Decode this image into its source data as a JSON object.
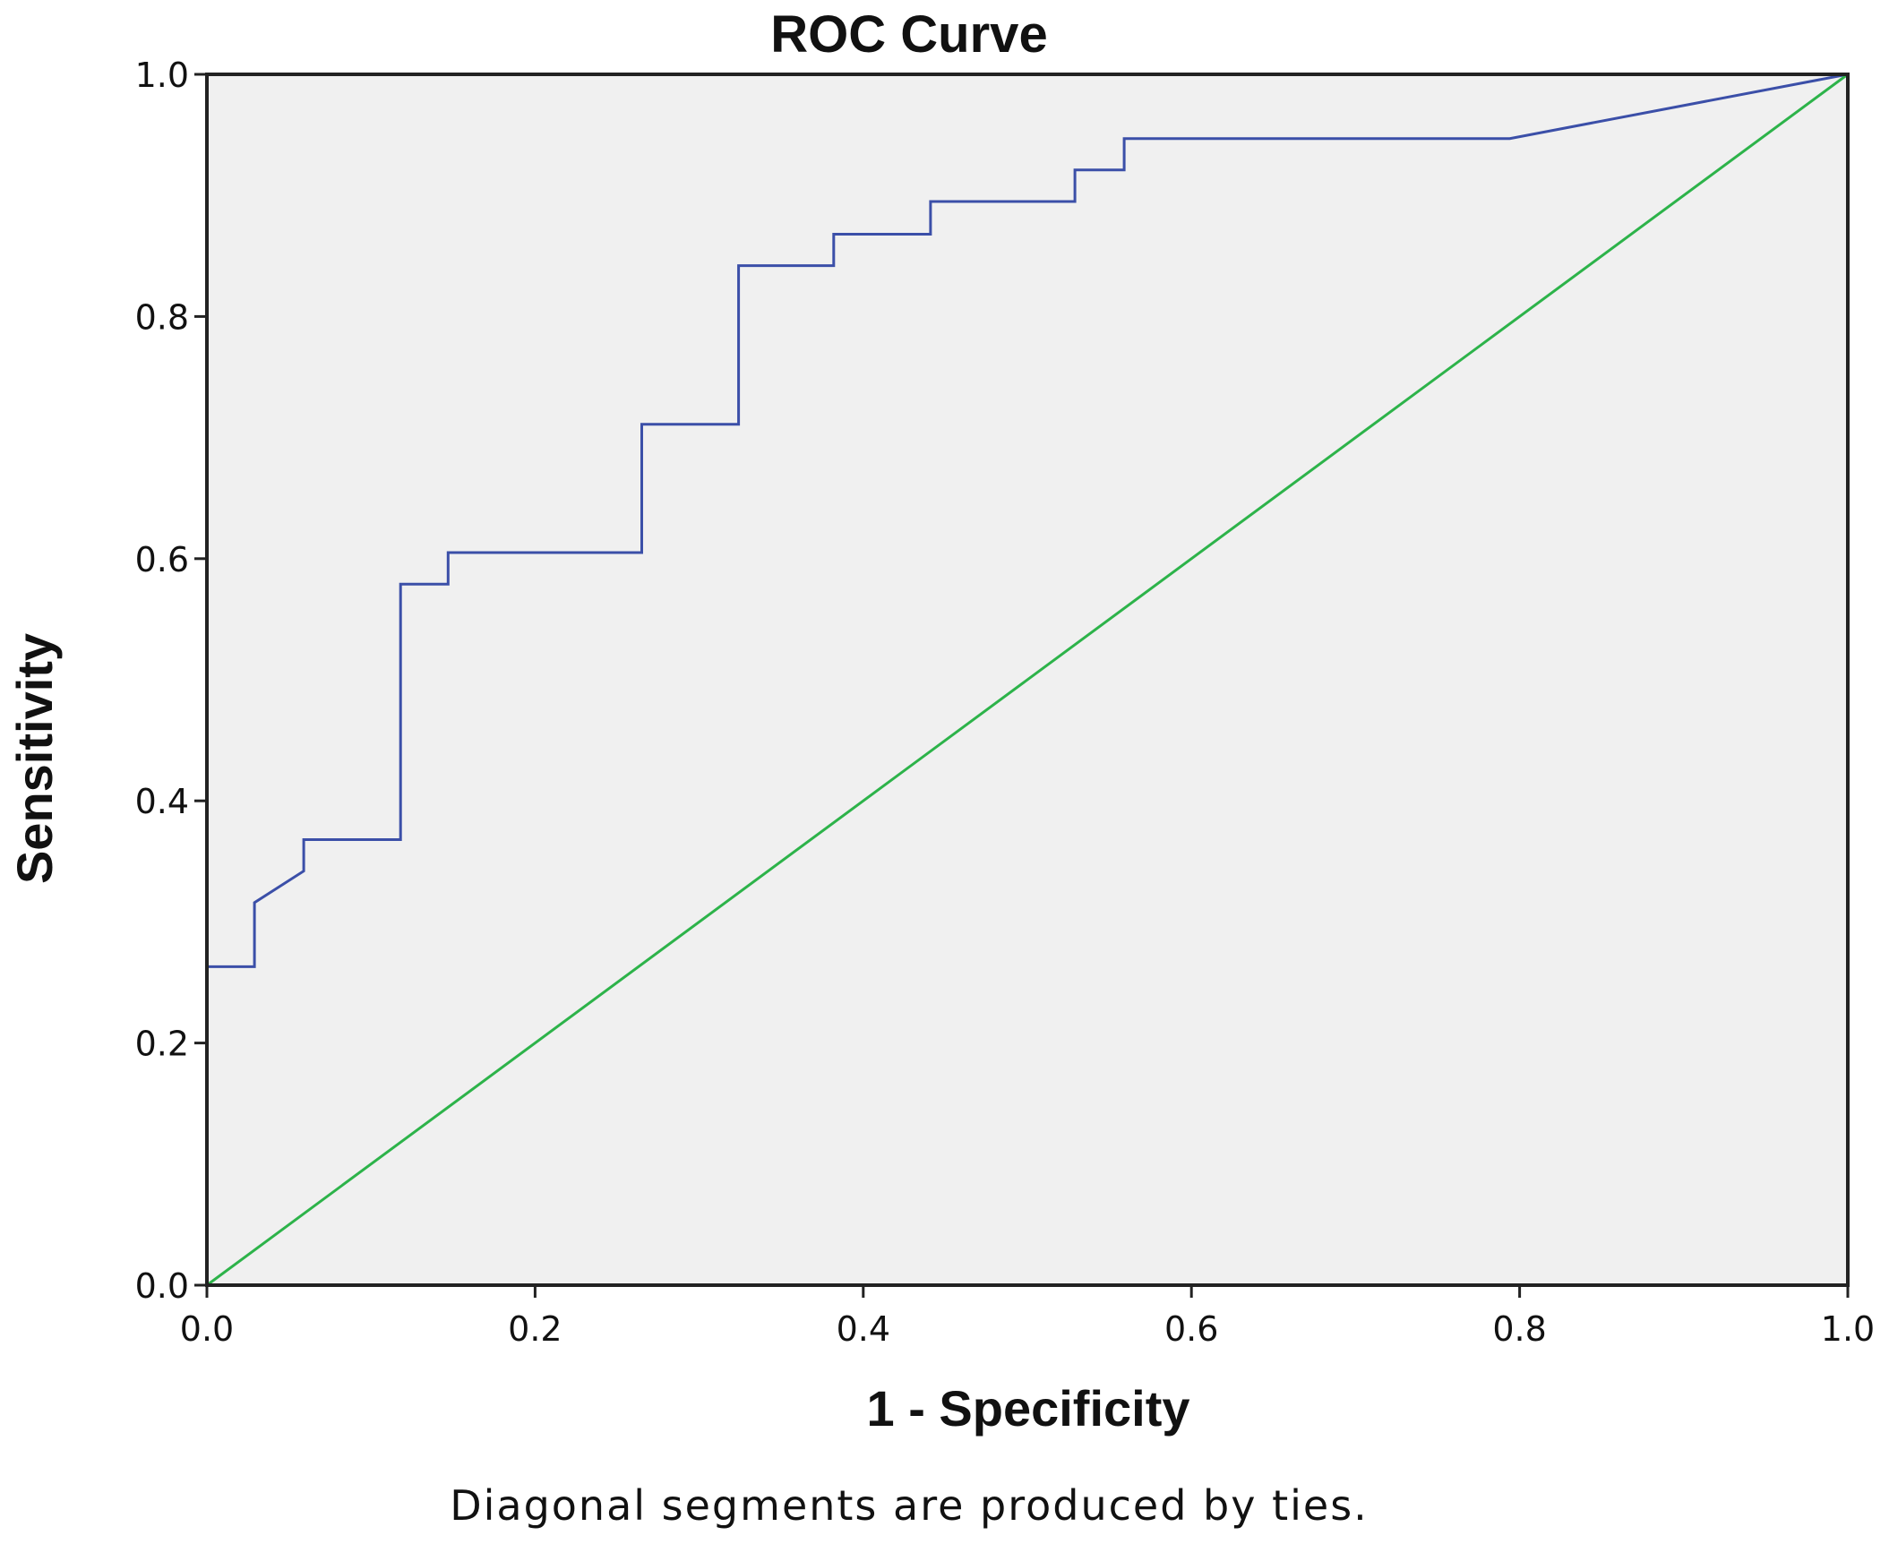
{
  "chart_data": {
    "type": "line",
    "title": "ROC Curve",
    "xlabel": "1 - Specificity",
    "ylabel": "Sensitivity",
    "xlim": [
      0,
      1
    ],
    "ylim": [
      0,
      1
    ],
    "x_ticks": [
      "0.0",
      "0.2",
      "0.4",
      "0.6",
      "0.8",
      "1.0"
    ],
    "y_ticks": [
      "0.0",
      "0.2",
      "0.4",
      "0.6",
      "0.8",
      "1.0"
    ],
    "grid": false,
    "footnote": "Diagonal segments are produced by ties.",
    "plot_background": "#f0f0f0",
    "series": [
      {
        "color": "#3b4fa8",
        "points": [
          [
            0.0,
            0.0
          ],
          [
            0.0,
            0.263
          ],
          [
            0.029,
            0.263
          ],
          [
            0.029,
            0.316
          ],
          [
            0.059,
            0.342
          ],
          [
            0.059,
            0.368
          ],
          [
            0.118,
            0.368
          ],
          [
            0.118,
            0.579
          ],
          [
            0.147,
            0.579
          ],
          [
            0.147,
            0.605
          ],
          [
            0.265,
            0.605
          ],
          [
            0.265,
            0.711
          ],
          [
            0.324,
            0.711
          ],
          [
            0.324,
            0.842
          ],
          [
            0.382,
            0.842
          ],
          [
            0.382,
            0.868
          ],
          [
            0.441,
            0.868
          ],
          [
            0.441,
            0.895
          ],
          [
            0.529,
            0.895
          ],
          [
            0.529,
            0.921
          ],
          [
            0.559,
            0.921
          ],
          [
            0.559,
            0.947
          ],
          [
            0.794,
            0.947
          ],
          [
            1.0,
            1.0
          ]
        ]
      },
      {
        "color": "#2db34a",
        "points": [
          [
            0.0,
            0.0
          ],
          [
            1.0,
            1.0
          ]
        ]
      }
    ]
  }
}
